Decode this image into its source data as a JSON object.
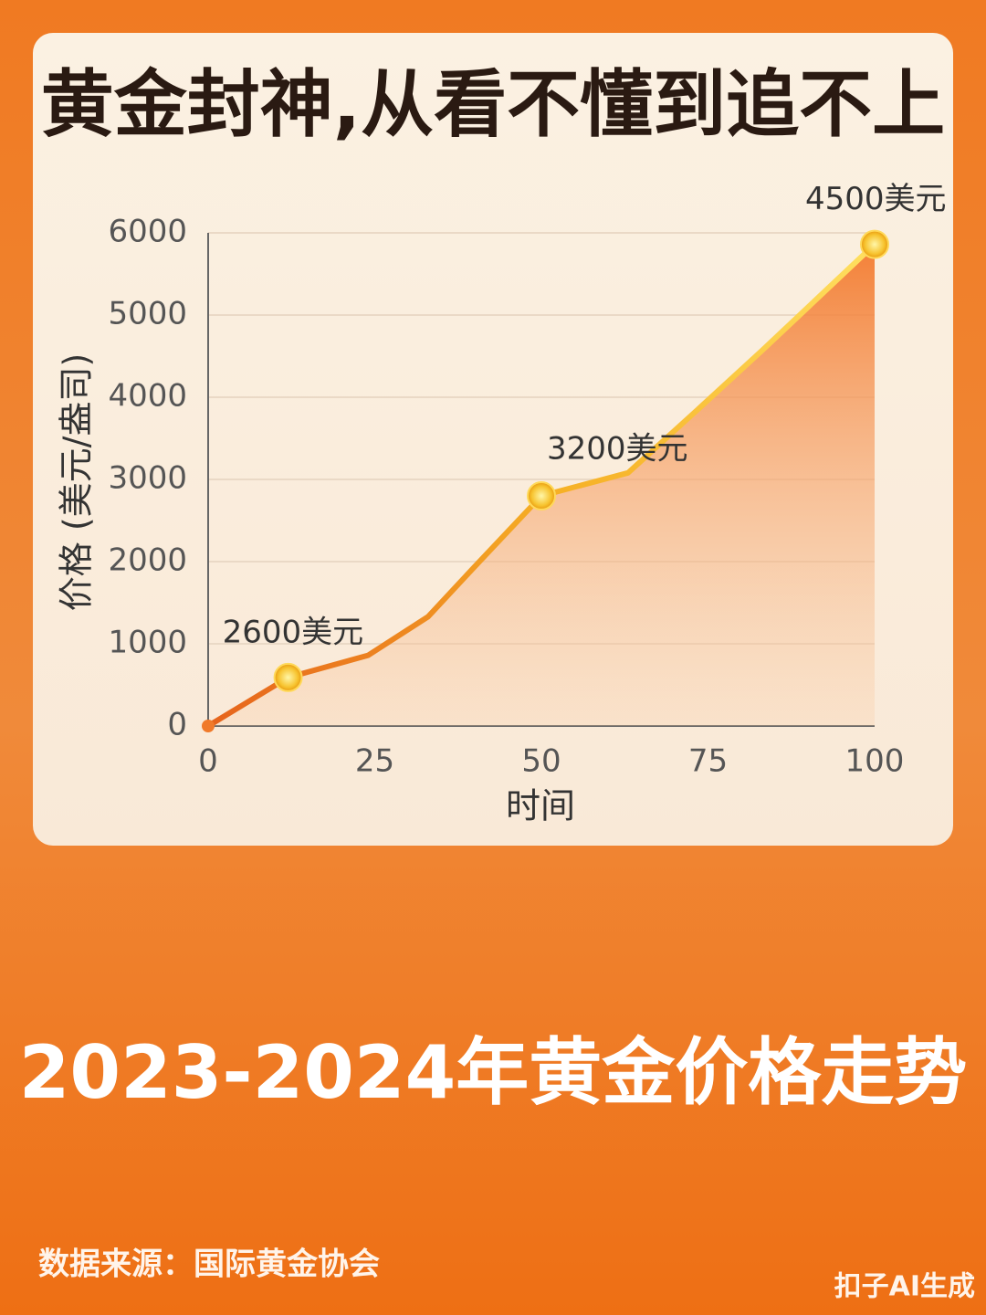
{
  "chart_data": {
    "type": "area",
    "title": "黄金封神,从看不懂到追不上",
    "x_label": "时间",
    "y_label": "价格 (美元/盎司)",
    "x": [
      0,
      12,
      24,
      33,
      40,
      50,
      63,
      74,
      83,
      100
    ],
    "values": [
      0,
      590,
      860,
      1330,
      1940,
      2800,
      3080,
      3890,
      4560,
      5860
    ],
    "color": "#f07a2a",
    "xlim": [
      0,
      100
    ],
    "xticks": [
      0,
      25,
      50,
      75,
      100
    ],
    "ylim": [
      0,
      6000
    ],
    "yticks": [
      0,
      1000,
      2000,
      3000,
      4000,
      5000,
      6000
    ],
    "grid": true,
    "annotations": [
      "2600美元",
      "3200美元",
      "4500美元"
    ],
    "caption": "2023-2024年黄金价格走势",
    "source": "数据来源：国际黄金协会",
    "watermark": "扣子AI生成"
  }
}
